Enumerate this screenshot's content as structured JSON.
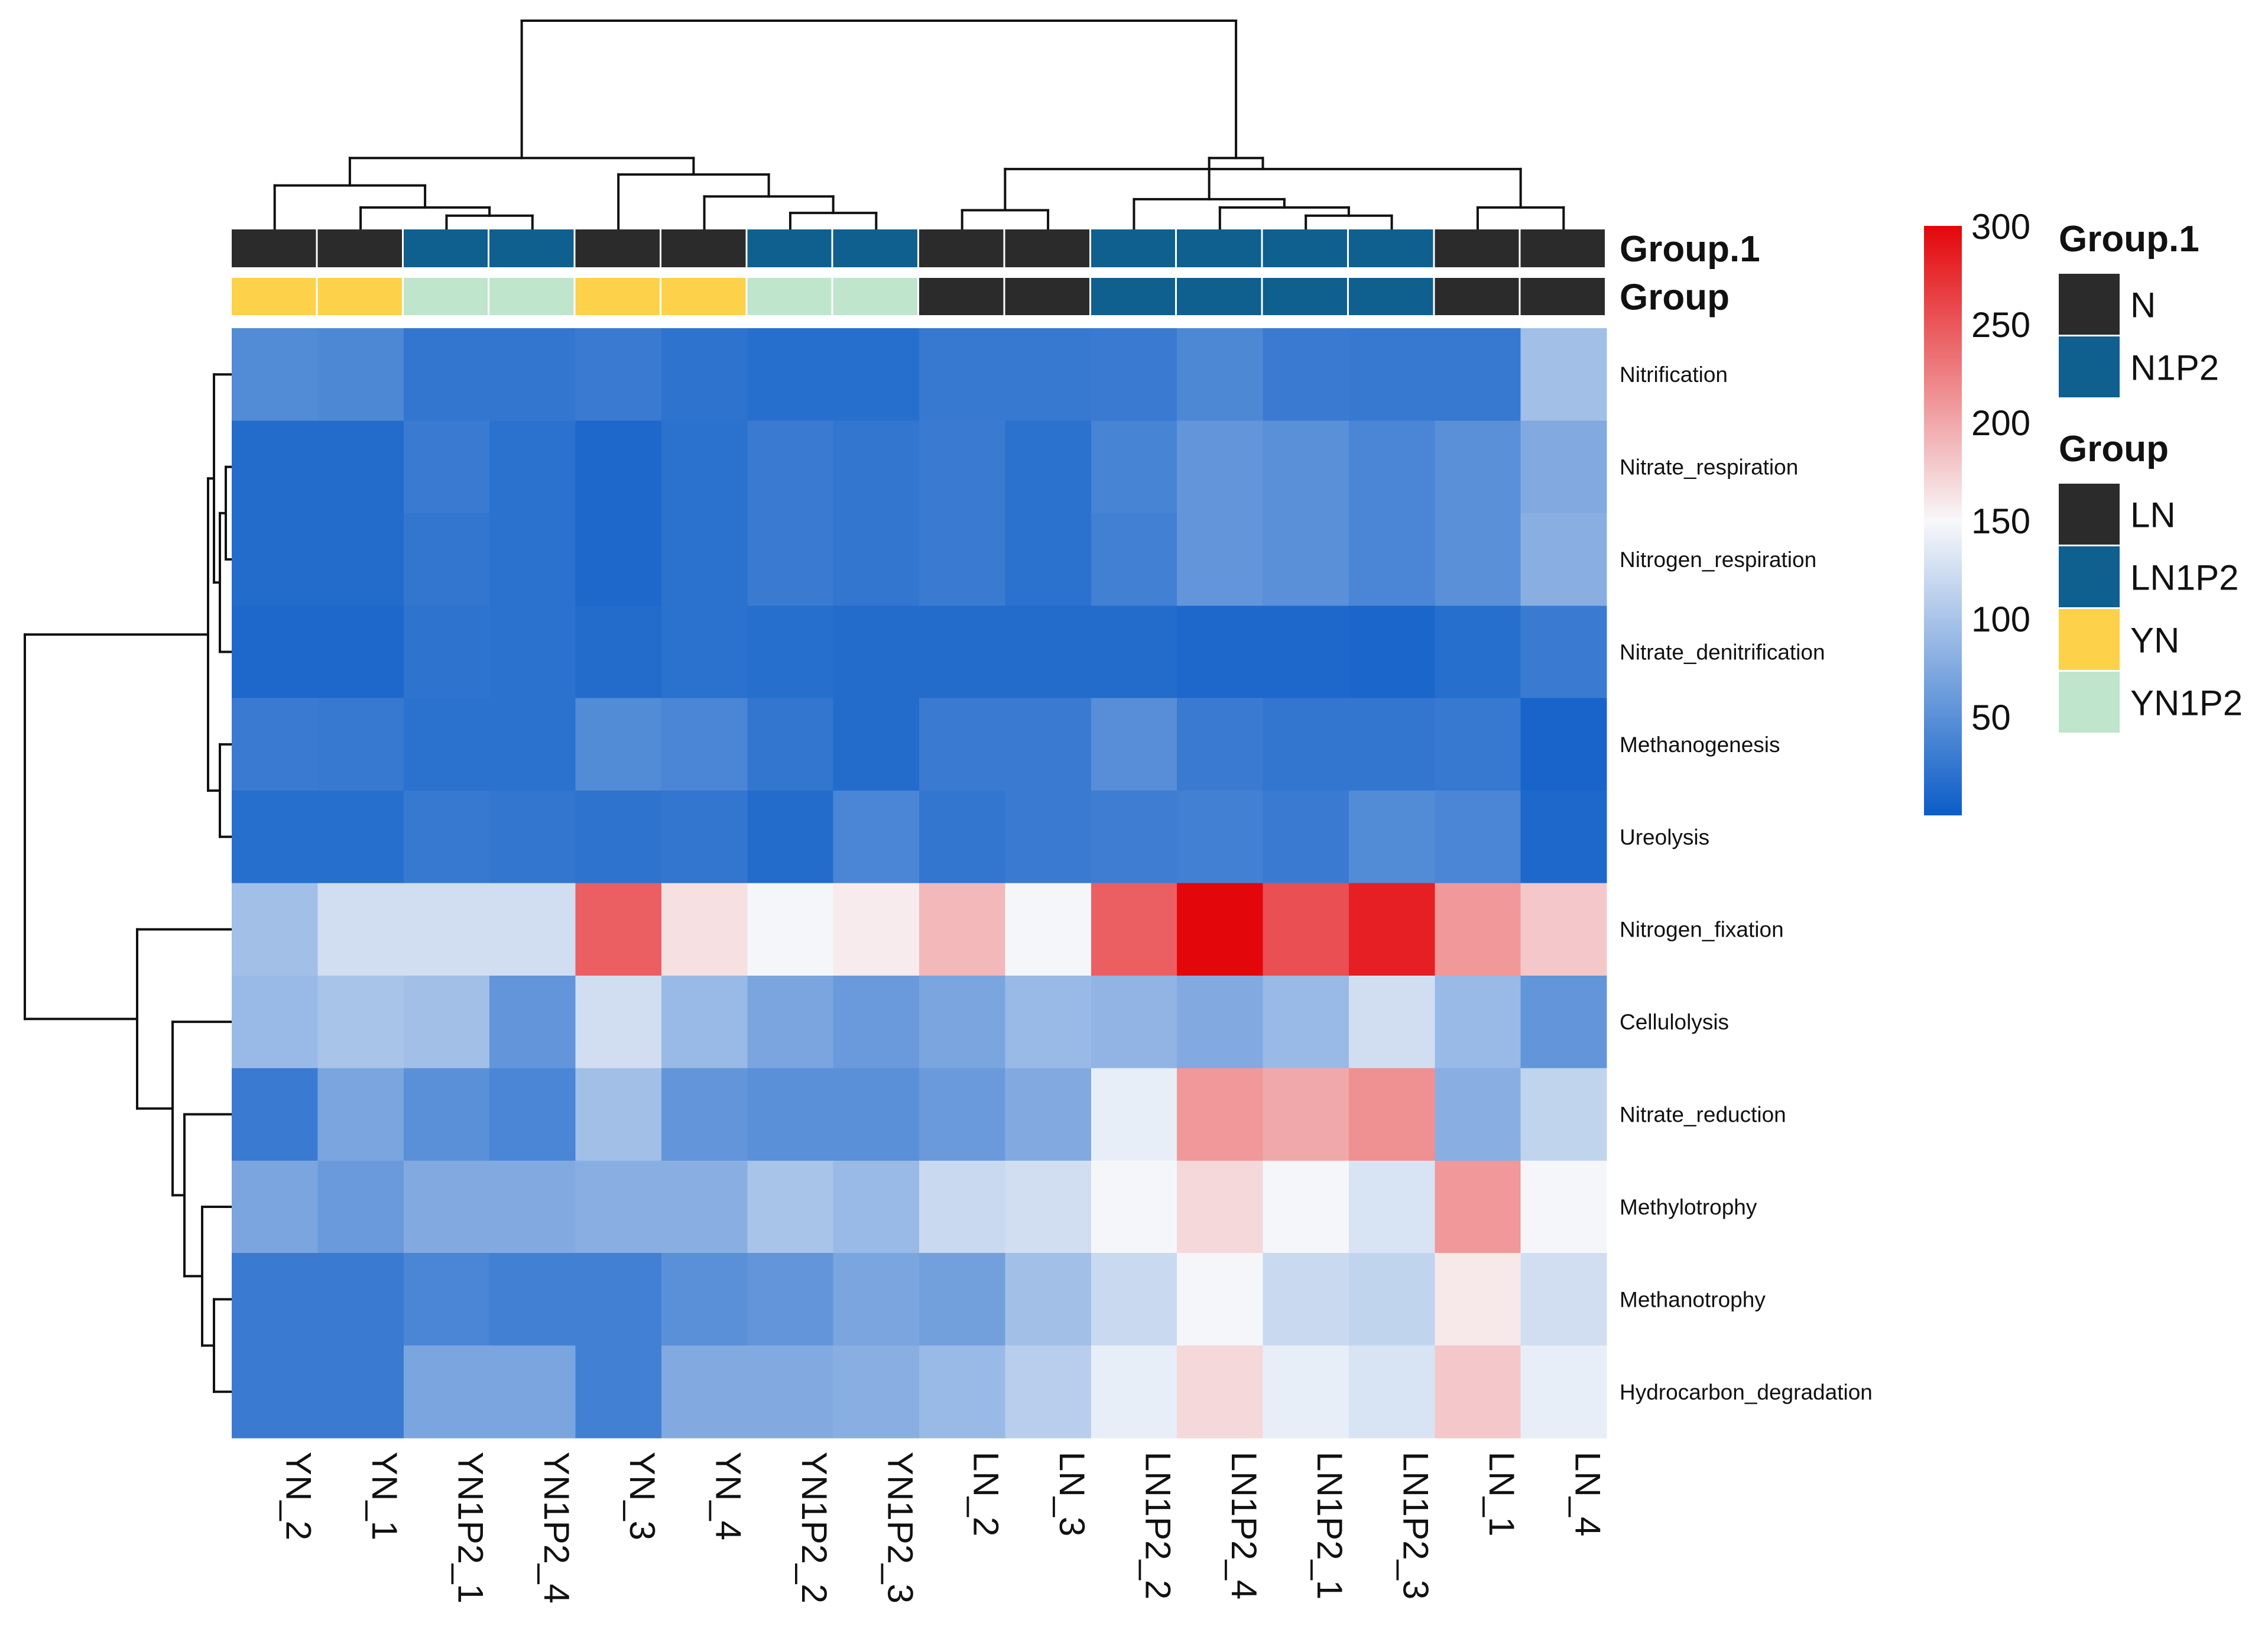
{
  "chart_data": {
    "type": "heatmap",
    "columns": [
      "YN_2",
      "YN_1",
      "YN1P2_1",
      "YN1P2_4",
      "YN_3",
      "YN_4",
      "YN1P2_2",
      "YN1P2_3",
      "LN_2",
      "LN_3",
      "LN1P2_2",
      "LN1P2_4",
      "LN1P2_1",
      "LN1P2_3",
      "LN_1",
      "LN_4"
    ],
    "rows": [
      "Nitrification",
      "Nitrate_respiration",
      "Nitrogen_respiration",
      "Nitrate_denitrification",
      "Methanogenesis",
      "Ureolysis",
      "Nitrogen_fixation",
      "Cellulolysis",
      "Nitrate_reduction",
      "Methylotrophy",
      "Methanotrophy",
      "Hydrocarbon_degradation"
    ],
    "values": [
      [
        45,
        42,
        25,
        25,
        30,
        22,
        18,
        18,
        28,
        28,
        30,
        42,
        30,
        28,
        28,
        95
      ],
      [
        15,
        15,
        30,
        20,
        12,
        20,
        30,
        25,
        30,
        20,
        38,
        55,
        50,
        40,
        50,
        75
      ],
      [
        15,
        15,
        25,
        20,
        12,
        20,
        30,
        25,
        30,
        20,
        35,
        55,
        50,
        40,
        50,
        80
      ],
      [
        12,
        12,
        22,
        20,
        15,
        20,
        18,
        15,
        15,
        15,
        15,
        12,
        12,
        10,
        18,
        30
      ],
      [
        30,
        28,
        20,
        20,
        45,
        40,
        25,
        15,
        30,
        30,
        48,
        30,
        25,
        25,
        28,
        8
      ],
      [
        18,
        18,
        28,
        25,
        22,
        25,
        15,
        40,
        25,
        30,
        32,
        35,
        30,
        45,
        40,
        12
      ],
      [
        95,
        125,
        125,
        125,
        245,
        165,
        148,
        158,
        190,
        148,
        245,
        300,
        255,
        285,
        210,
        180
      ],
      [
        90,
        100,
        95,
        55,
        125,
        90,
        70,
        60,
        70,
        90,
        85,
        75,
        90,
        125,
        90,
        55
      ],
      [
        30,
        70,
        50,
        40,
        95,
        55,
        50,
        50,
        60,
        75,
        140,
        210,
        200,
        215,
        80,
        115
      ],
      [
        70,
        60,
        75,
        75,
        80,
        80,
        100,
        90,
        120,
        125,
        148,
        170,
        148,
        130,
        210,
        148
      ],
      [
        30,
        30,
        40,
        35,
        35,
        50,
        55,
        70,
        65,
        95,
        120,
        148,
        120,
        115,
        160,
        125
      ],
      [
        30,
        30,
        70,
        70,
        35,
        75,
        75,
        80,
        90,
        110,
        140,
        170,
        140,
        130,
        180,
        140
      ]
    ],
    "color_scale": {
      "min": 0,
      "mid": 150,
      "max": 300,
      "low_color": "#0b5cc7",
      "mid_color": "#f8f8fa",
      "high_color": "#e3070b"
    },
    "colorbar_ticks": [
      50,
      100,
      150,
      200,
      250,
      300
    ],
    "annotation_rows": [
      {
        "name": "Group.1",
        "values": [
          "N",
          "N",
          "N1P2",
          "N1P2",
          "N",
          "N",
          "N1P2",
          "N1P2",
          "N",
          "N",
          "N1P2",
          "N1P2",
          "N1P2",
          "N1P2",
          "N",
          "N"
        ]
      },
      {
        "name": "Group",
        "values": [
          "YN",
          "YN",
          "YN1P2",
          "YN1P2",
          "YN",
          "YN",
          "YN1P2",
          "YN1P2",
          "LN",
          "LN",
          "LN1P2",
          "LN1P2",
          "LN1P2",
          "LN1P2",
          "LN",
          "LN"
        ]
      }
    ],
    "legends": [
      {
        "title": "Group.1",
        "entries": [
          {
            "label": "N",
            "color": "#2b2b2b"
          },
          {
            "label": "N1P2",
            "color": "#0f5f8f"
          }
        ]
      },
      {
        "title": "Group",
        "entries": [
          {
            "label": "LN",
            "color": "#2b2b2b"
          },
          {
            "label": "LN1P2",
            "color": "#0f5f8f"
          },
          {
            "label": "YN",
            "color": "#fdd149"
          },
          {
            "label": "YN1P2",
            "color": "#bfe5cd"
          }
        ]
      }
    ],
    "column_dendrogram": {
      "leaves": 16,
      "merges": [
        [
          2,
          3,
          0.25
        ],
        [
          6,
          7,
          0.3
        ],
        [
          1,
          16,
          0.4
        ],
        [
          5,
          17,
          0.6
        ],
        [
          0,
          18,
          0.8
        ],
        [
          4,
          19,
          1.0
        ],
        [
          20,
          21,
          1.3
        ],
        [
          12,
          13,
          0.25
        ],
        [
          11,
          23,
          0.4
        ],
        [
          10,
          24,
          0.55
        ],
        [
          8,
          9,
          0.35
        ],
        [
          14,
          15,
          0.4
        ],
        [
          26,
          27,
          1.1
        ],
        [
          25,
          28,
          1.3
        ],
        [
          22,
          29,
          3.8
        ]
      ]
    },
    "row_dendrogram": {
      "leaves": 12,
      "merges": [
        [
          1,
          2,
          0.1
        ],
        [
          3,
          12,
          0.2
        ],
        [
          0,
          13,
          0.3
        ],
        [
          4,
          5,
          0.2
        ],
        [
          14,
          15,
          0.4
        ],
        [
          10,
          11,
          0.3
        ],
        [
          9,
          17,
          0.5
        ],
        [
          8,
          18,
          0.8
        ],
        [
          7,
          19,
          1.0
        ],
        [
          6,
          20,
          1.6
        ],
        [
          16,
          21,
          3.5
        ]
      ]
    }
  }
}
